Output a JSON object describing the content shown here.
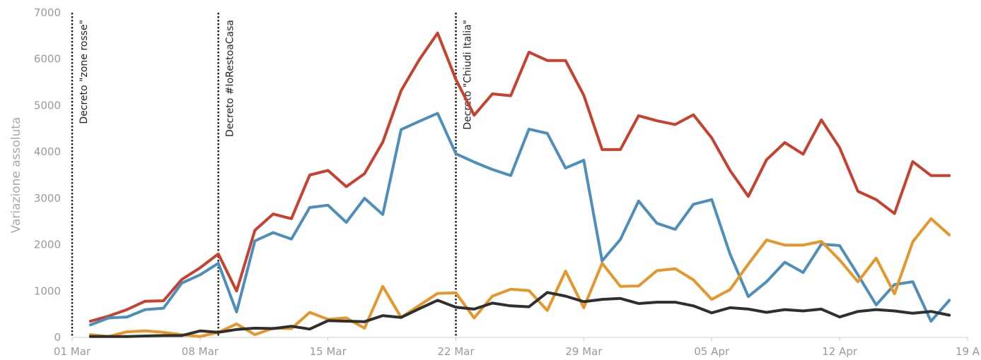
{
  "chart_data": {
    "type": "line",
    "title": "",
    "xlabel": "",
    "ylabel": "Variazione assoluta",
    "x_start": "2020-03-01",
    "x_end": "2020-04-19",
    "ylim": [
      0,
      7000
    ],
    "yticks": [
      0,
      1000,
      2000,
      3000,
      4000,
      5000,
      6000,
      7000
    ],
    "xticks": [
      {
        "date": "2020-03-01",
        "label": "01 Mar"
      },
      {
        "date": "2020-03-08",
        "label": "08 Mar"
      },
      {
        "date": "2020-03-15",
        "label": "15 Mar"
      },
      {
        "date": "2020-03-22",
        "label": "22 Mar"
      },
      {
        "date": "2020-03-29",
        "label": "29 Mar"
      },
      {
        "date": "2020-04-05",
        "label": "05 Apr"
      },
      {
        "date": "2020-04-12",
        "label": "12 Apr"
      },
      {
        "date": "2020-04-19",
        "label": "19 A"
      }
    ],
    "grid": false,
    "legend": "none",
    "x": [
      "2020-03-02",
      "2020-03-03",
      "2020-03-04",
      "2020-03-05",
      "2020-03-06",
      "2020-03-07",
      "2020-03-08",
      "2020-03-09",
      "2020-03-10",
      "2020-03-11",
      "2020-03-12",
      "2020-03-13",
      "2020-03-14",
      "2020-03-15",
      "2020-03-16",
      "2020-03-17",
      "2020-03-18",
      "2020-03-19",
      "2020-03-20",
      "2020-03-21",
      "2020-03-22",
      "2020-03-23",
      "2020-03-24",
      "2020-03-25",
      "2020-03-26",
      "2020-03-27",
      "2020-03-28",
      "2020-03-29",
      "2020-03-30",
      "2020-03-31",
      "2020-04-01",
      "2020-04-02",
      "2020-04-03",
      "2020-04-04",
      "2020-04-05",
      "2020-04-06",
      "2020-04-07",
      "2020-04-08",
      "2020-04-09",
      "2020-04-10",
      "2020-04-11",
      "2020-04-12",
      "2020-04-13",
      "2020-04-14",
      "2020-04-15",
      "2020-04-16",
      "2020-04-17",
      "2020-04-18"
    ],
    "series": [
      {
        "color": "#c8412f",
        "values": [
          350,
          460,
          600,
          780,
          790,
          1250,
          1500,
          1800,
          1000,
          2310,
          2660,
          2560,
          3500,
          3600,
          3250,
          3530,
          4210,
          5320,
          5990,
          6560,
          5560,
          4790,
          5250,
          5210,
          6150,
          5970,
          5970,
          5220,
          4050,
          4050,
          4780,
          4670,
          4590,
          4800,
          4300,
          3600,
          3040,
          3830,
          4200,
          3950,
          4690,
          4090,
          3150,
          2970,
          2670,
          3790,
          3490,
          3490
        ]
      },
      {
        "color": "#4d8fba",
        "values": [
          270,
          420,
          440,
          600,
          630,
          1170,
          1350,
          1600,
          550,
          2080,
          2260,
          2120,
          2800,
          2850,
          2480,
          3000,
          2650,
          4480,
          4660,
          4830,
          3960,
          3780,
          3620,
          3490,
          4490,
          4400,
          3650,
          3820,
          1650,
          2110,
          2940,
          2460,
          2330,
          2870,
          2970,
          1800,
          880,
          1200,
          1620,
          1400,
          2010,
          1980,
          1350,
          700,
          1140,
          1200,
          350,
          800
        ]
      },
      {
        "color": "#e6962b",
        "values": [
          60,
          20,
          120,
          140,
          110,
          60,
          20,
          110,
          290,
          60,
          200,
          190,
          540,
          390,
          420,
          200,
          1100,
          430,
          690,
          950,
          960,
          420,
          890,
          1040,
          1010,
          580,
          1430,
          640,
          1600,
          1100,
          1110,
          1440,
          1480,
          1240,
          820,
          1030,
          1580,
          2100,
          1990,
          1990,
          2070,
          1670,
          1200,
          1710,
          940,
          2060,
          2560,
          2210
        ]
      },
      {
        "color": "#2f2f2f",
        "values": [
          20,
          20,
          20,
          30,
          40,
          40,
          140,
          110,
          170,
          200,
          190,
          240,
          180,
          360,
          350,
          340,
          470,
          430,
          620,
          800,
          650,
          610,
          740,
          680,
          660,
          970,
          890,
          770,
          820,
          840,
          730,
          760,
          760,
          680,
          530,
          640,
          610,
          540,
          600,
          570,
          610,
          440,
          560,
          600,
          570,
          520,
          560,
          480
        ]
      }
    ],
    "annotations": [
      {
        "date": "2020-03-01",
        "text": "Decreto \"zone rosse\""
      },
      {
        "date": "2020-03-09",
        "text": "Decreto #IoRestoaCasa"
      },
      {
        "date": "2020-03-22",
        "text": "Decreto \"Chiudi Italia\""
      }
    ]
  }
}
